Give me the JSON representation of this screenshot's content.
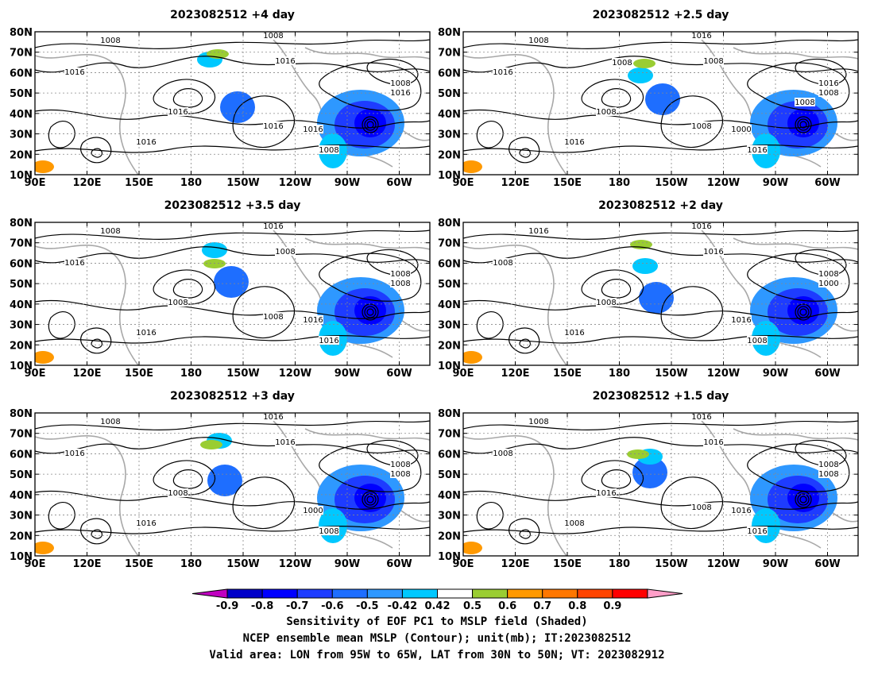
{
  "panels": [
    {
      "title": "2023082512  +4 day",
      "labels": [
        "1008",
        "1016",
        "1016",
        "1016",
        "1008",
        "1016",
        "1008",
        "1016",
        "1016",
        "1008",
        "1016"
      ],
      "blobs": [
        "c",
        "l",
        "r"
      ]
    },
    {
      "title": "2023082512  +2.5 day",
      "labels": [
        "1008",
        "1016",
        "1008",
        "1016",
        "1016",
        "1008",
        "1016",
        "1008",
        "1000",
        "1016",
        "1008",
        "1008",
        "1008"
      ],
      "blobs": [
        "c",
        "l",
        "r"
      ]
    },
    {
      "title": "2023082512  +3.5 day",
      "labels": [
        "1008",
        "1016",
        "1008",
        "1016",
        "1016",
        "1008",
        "1008",
        "1008",
        "1016",
        "1016",
        "1008"
      ],
      "blobs": [
        "c",
        "l",
        "r"
      ]
    },
    {
      "title": "2023082512  +2 day",
      "labels": [
        "1016",
        "1008",
        "1008",
        "1016",
        "1016",
        "1016",
        "1008",
        "1000",
        "1016",
        "1008"
      ],
      "blobs": [
        "c",
        "l",
        "r"
      ]
    },
    {
      "title": "2023082512  +3 day",
      "labels": [
        "1008",
        "1016",
        "1008",
        "1016",
        "1016",
        "1016",
        "1008",
        "1008",
        "1000",
        "1008"
      ],
      "blobs": [
        "c",
        "l",
        "r"
      ]
    },
    {
      "title": "2023082512  +1.5 day",
      "labels": [
        "1008",
        "1008",
        "1016",
        "1008",
        "1016",
        "1016",
        "1008",
        "1008",
        "1016",
        "1016",
        "1008"
      ],
      "blobs": [
        "c",
        "l",
        "r"
      ]
    }
  ],
  "axes": {
    "lat_labels": [
      "80N",
      "70N",
      "60N",
      "50N",
      "40N",
      "30N",
      "20N",
      "10N"
    ],
    "lon_labels": [
      "90E",
      "120E",
      "150E",
      "180",
      "150W",
      "120W",
      "90W",
      "60W"
    ]
  },
  "colorbar": {
    "colors": [
      "#c000c0",
      "#0000c8",
      "#0000ff",
      "#1e3cff",
      "#1e6eff",
      "#2e98ff",
      "#00c8ff",
      "#ffffff",
      "#9acd32",
      "#ff9900",
      "#ff7700",
      "#ff4400",
      "#ff0000",
      "#ff9ec8"
    ],
    "ticks": [
      "-0.9",
      "-0.8",
      "-0.7",
      "-0.6",
      "-0.5",
      "-0.42",
      "0.42",
      "0.5",
      "0.6",
      "0.7",
      "0.8",
      "0.9"
    ]
  },
  "caption": {
    "line1": "Sensitivity of EOF PC1 to MSLP field (Shaded)",
    "line2": "NCEP ensemble mean MSLP (Contour); unit(mb); IT:2023082512",
    "line3": "Valid area: LON from 95W to 65W, LAT from 30N to 50N; VT: 2023082912"
  }
}
